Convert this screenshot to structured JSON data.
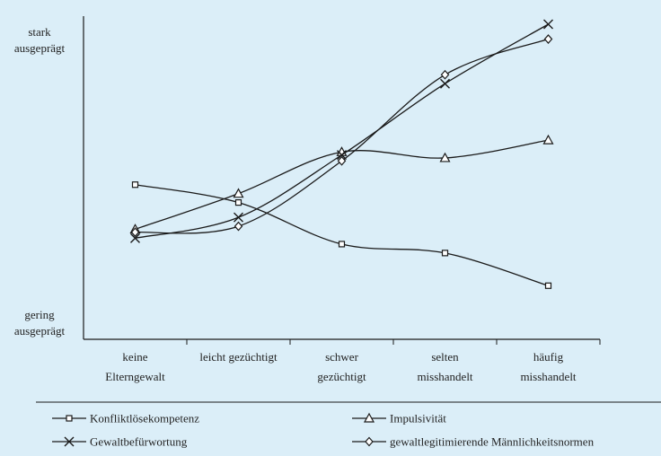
{
  "chart_data": {
    "type": "line",
    "title": "",
    "xlabel": "",
    "ylabel": "",
    "y_axis_labels": {
      "top": [
        "stark",
        "ausgeprägt"
      ],
      "bottom": [
        "gering",
        "ausgeprägt"
      ]
    },
    "ylim": [
      0,
      100
    ],
    "grid": false,
    "legend_position": "bottom",
    "categories": [
      [
        "keine",
        "Elterngewalt"
      ],
      [
        "leicht gezüchtigt"
      ],
      [
        "schwer",
        "gezüchtigt"
      ],
      [
        "selten",
        "misshandelt"
      ],
      [
        "häufig",
        "misshandelt"
      ]
    ],
    "series": [
      {
        "name": "Konfliktlösekompetenz",
        "marker": "square",
        "values": [
          46,
          40,
          26,
          23,
          12
        ]
      },
      {
        "name": "Impulsivität",
        "marker": "triangle",
        "values": [
          31,
          43,
          57,
          55,
          61
        ]
      },
      {
        "name": "Gewaltbefürwortung",
        "marker": "cross",
        "values": [
          28,
          35,
          56,
          80,
          100
        ]
      },
      {
        "name": "gewaltlegitimierende Männlichkeitsnormen",
        "marker": "diamond",
        "values": [
          30,
          32,
          54,
          83,
          95
        ]
      }
    ],
    "colors": {
      "line": "#1a1a1a",
      "background": "#dbeef8"
    }
  }
}
